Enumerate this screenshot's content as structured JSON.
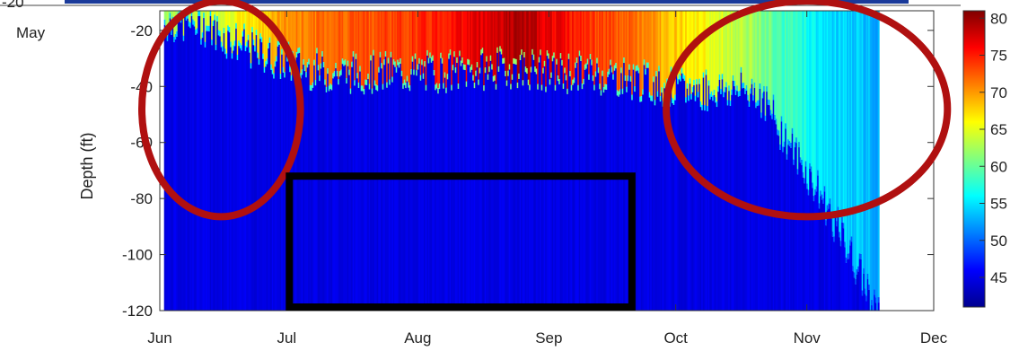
{
  "chart_data": {
    "type": "heatmap",
    "title": "",
    "xlabel": "",
    "ylabel": "Depth (ft)",
    "x_ticks": [
      "Jun",
      "Jul",
      "Aug",
      "Sep",
      "Oct",
      "Nov",
      "Dec"
    ],
    "x_partial_label": "May",
    "y_ticks": [
      -20,
      -40,
      -60,
      -80,
      -100,
      -120
    ],
    "y_partial_label": "-20",
    "ylim": [
      -120,
      -13
    ],
    "colorbar": {
      "ticks": [
        45,
        50,
        55,
        60,
        65,
        70,
        75,
        80
      ],
      "range": [
        41,
        81
      ],
      "colormap": "jet"
    },
    "data_extent": {
      "start": "Jun 2",
      "end": "Nov 18"
    },
    "surface_profile": [
      {
        "date": "Jun 2",
        "surface_temp": 62,
        "thermocline_depth": -16
      },
      {
        "date": "Jun 10",
        "surface_temp": 64,
        "thermocline_depth": -16
      },
      {
        "date": "Jun 20",
        "surface_temp": 66,
        "thermocline_depth": -24
      },
      {
        "date": "Jun 30",
        "surface_temp": 70,
        "thermocline_depth": -30
      },
      {
        "date": "Jul 10",
        "surface_temp": 72,
        "thermocline_depth": -34
      },
      {
        "date": "Jul 20",
        "surface_temp": 73,
        "thermocline_depth": -34
      },
      {
        "date": "Aug 1",
        "surface_temp": 74,
        "thermocline_depth": -34
      },
      {
        "date": "Aug 15",
        "surface_temp": 77,
        "thermocline_depth": -33
      },
      {
        "date": "Aug 25",
        "surface_temp": 79,
        "thermocline_depth": -32
      },
      {
        "date": "Sep 1",
        "surface_temp": 77,
        "thermocline_depth": -34
      },
      {
        "date": "Sep 10",
        "surface_temp": 74,
        "thermocline_depth": -34
      },
      {
        "date": "Sep 20",
        "surface_temp": 72,
        "thermocline_depth": -36
      },
      {
        "date": "Oct 1",
        "surface_temp": 68,
        "thermocline_depth": -40
      },
      {
        "date": "Oct 10",
        "surface_temp": 65,
        "thermocline_depth": -40
      },
      {
        "date": "Oct 20",
        "surface_temp": 62,
        "thermocline_depth": -40
      },
      {
        "date": "Oct 28",
        "surface_temp": 58,
        "thermocline_depth": -60
      },
      {
        "date": "Nov 5",
        "surface_temp": 55,
        "thermocline_depth": -80
      },
      {
        "date": "Nov 18",
        "surface_temp": 53,
        "thermocline_depth": -120
      }
    ],
    "deep_water_temp": 45,
    "annotations": [
      {
        "shape": "ellipse",
        "color": "#b01010",
        "around": {
          "start": "Jun 1",
          "end": "Jun 30",
          "depth_top": -14,
          "depth_bottom": -82
        }
      },
      {
        "shape": "ellipse",
        "color": "#b01010",
        "around": {
          "start": "Oct 3",
          "end": "Nov 30",
          "depth_top": -14,
          "depth_bottom": -82
        }
      },
      {
        "shape": "rectangle",
        "color": "#000000",
        "around": {
          "start": "Jul 1",
          "end": "Sep 20",
          "depth_top": -72,
          "depth_bottom": -120
        }
      }
    ]
  }
}
